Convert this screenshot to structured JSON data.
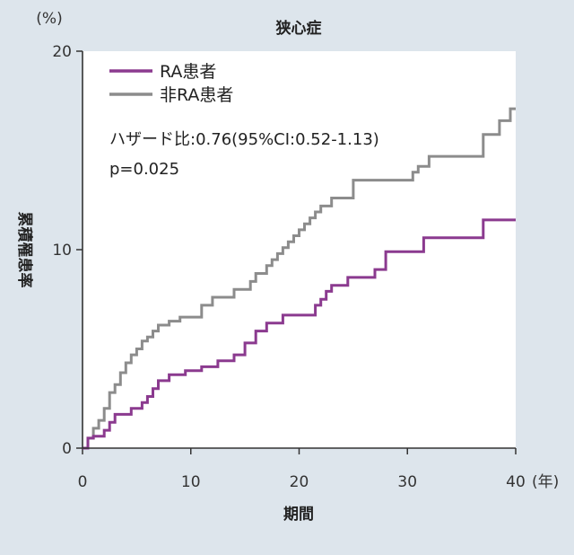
{
  "chart_data": {
    "type": "line",
    "title": "狭心症",
    "xlabel": "期間",
    "ylabel": "累積罹患率",
    "x_unit": "(年)",
    "y_unit": "(%)",
    "xlim": [
      0,
      40
    ],
    "ylim": [
      0,
      20
    ],
    "x_ticks": [
      0,
      10,
      20,
      30,
      40
    ],
    "y_ticks": [
      0,
      10,
      20
    ],
    "grid": false,
    "legend_position": "top-left",
    "annotations": [
      "ハザード比:0.76(95%CI:0.52-1.13)",
      "p=0.025"
    ],
    "series": [
      {
        "name": "RA患者",
        "color": "#8b3a8f",
        "step": true,
        "x": [
          0,
          0.5,
          1,
          2,
          2.5,
          3,
          4.5,
          5.5,
          6,
          6.5,
          7,
          8,
          9.5,
          11,
          12.5,
          14,
          15,
          16,
          17,
          18.5,
          21.5,
          22,
          22.5,
          23,
          24.5,
          27,
          28,
          31.5,
          37,
          40
        ],
        "y": [
          0,
          0.5,
          0.6,
          0.9,
          1.3,
          1.7,
          2.0,
          2.3,
          2.6,
          3.0,
          3.4,
          3.7,
          3.9,
          4.1,
          4.4,
          4.7,
          5.3,
          5.9,
          6.3,
          6.7,
          7.2,
          7.5,
          7.9,
          8.2,
          8.6,
          9.0,
          9.9,
          10.6,
          11.5,
          11.5
        ]
      },
      {
        "name": "非RA患者",
        "color": "#8c8c8c",
        "step": true,
        "x": [
          0,
          0.5,
          1,
          1.5,
          2,
          2.5,
          3,
          3.5,
          4,
          4.5,
          5,
          5.5,
          6,
          6.5,
          7,
          8,
          9,
          11,
          12,
          14,
          15.5,
          16,
          17,
          17.5,
          18,
          18.5,
          19,
          19.5,
          20,
          20.5,
          21,
          21.5,
          22,
          23,
          25,
          30.5,
          31,
          32,
          37,
          38.5,
          39.5,
          40
        ],
        "y": [
          0,
          0.5,
          1.0,
          1.4,
          2.0,
          2.8,
          3.2,
          3.8,
          4.3,
          4.7,
          5.0,
          5.4,
          5.6,
          5.9,
          6.2,
          6.4,
          6.6,
          7.2,
          7.6,
          8.0,
          8.4,
          8.8,
          9.2,
          9.5,
          9.8,
          10.1,
          10.4,
          10.7,
          11.0,
          11.3,
          11.6,
          11.9,
          12.2,
          12.6,
          13.5,
          13.9,
          14.2,
          14.7,
          15.8,
          16.5,
          17.1,
          17.1
        ]
      }
    ]
  }
}
